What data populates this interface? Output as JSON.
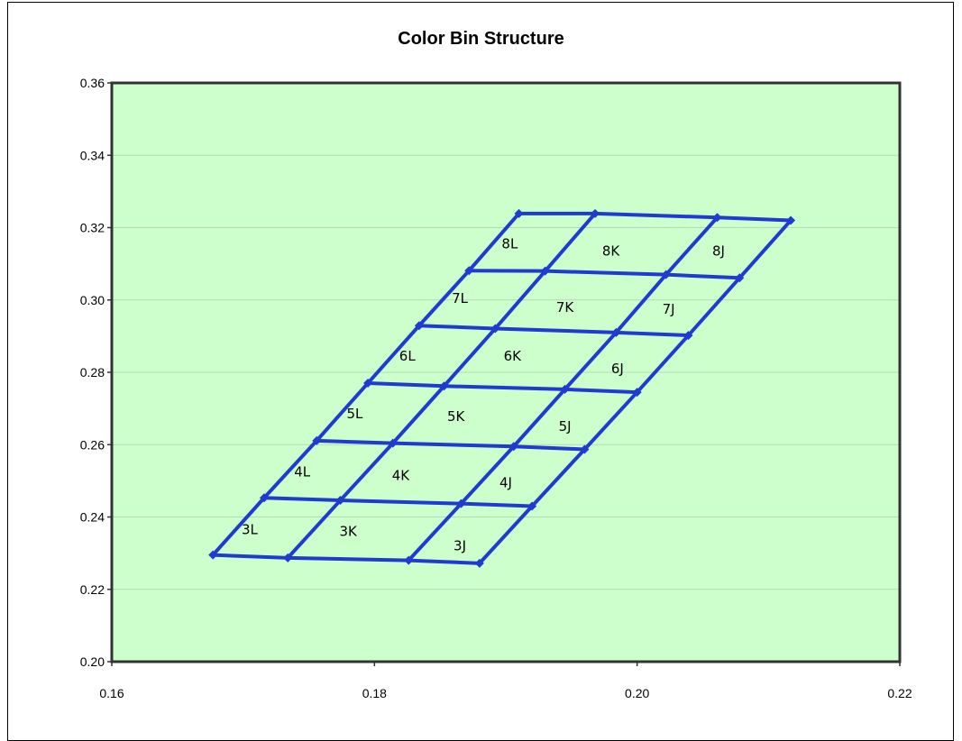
{
  "chart_data": {
    "type": "line",
    "title": "Color Bin Structure",
    "xlabel": "",
    "ylabel": "",
    "xlim": [
      0.16,
      0.22
    ],
    "ylim": [
      0.2,
      0.36
    ],
    "x_ticks": [
      "0.16",
      "0.18",
      "0.20",
      "0.22"
    ],
    "y_ticks": [
      "0.20",
      "0.22",
      "0.24",
      "0.26",
      "0.28",
      "0.30",
      "0.32",
      "0.34",
      "0.36"
    ],
    "grid": true,
    "legend": "none",
    "plot_background": "#ccffcc",
    "line_color": "#1f3ccf",
    "grid_nodes": [
      [
        [
          0.1677,
          0.2295
        ],
        [
          0.1734,
          0.2287
        ],
        [
          0.1826,
          0.228
        ],
        [
          0.188,
          0.2272
        ]
      ],
      [
        [
          0.1716,
          0.2453
        ],
        [
          0.1774,
          0.2446
        ],
        [
          0.1866,
          0.2437
        ],
        [
          0.192,
          0.243
        ]
      ],
      [
        [
          0.1756,
          0.2611
        ],
        [
          0.1814,
          0.2604
        ],
        [
          0.1906,
          0.2595
        ],
        [
          0.196,
          0.2587
        ]
      ],
      [
        [
          0.1795,
          0.277
        ],
        [
          0.1853,
          0.2762
        ],
        [
          0.1945,
          0.2753
        ],
        [
          0.2,
          0.2745
        ]
      ],
      [
        [
          0.1834,
          0.2929
        ],
        [
          0.1892,
          0.2921
        ],
        [
          0.1984,
          0.291
        ],
        [
          0.2039,
          0.2902
        ]
      ],
      [
        [
          0.1872,
          0.3081
        ],
        [
          0.193,
          0.308
        ],
        [
          0.2022,
          0.307
        ],
        [
          0.2078,
          0.3061
        ]
      ],
      [
        [
          0.191,
          0.3239
        ],
        [
          0.1968,
          0.3239
        ],
        [
          0.2061,
          0.3228
        ],
        [
          0.2117,
          0.322
        ]
      ]
    ],
    "bin_labels": [
      {
        "label": "3L",
        "x": 0.1705,
        "y": 0.2365
      },
      {
        "label": "3K",
        "x": 0.178,
        "y": 0.236
      },
      {
        "label": "3J",
        "x": 0.1865,
        "y": 0.232
      },
      {
        "label": "4L",
        "x": 0.1745,
        "y": 0.2525
      },
      {
        "label": "4K",
        "x": 0.182,
        "y": 0.2515
      },
      {
        "label": "4J",
        "x": 0.19,
        "y": 0.2495
      },
      {
        "label": "5L",
        "x": 0.1785,
        "y": 0.2685
      },
      {
        "label": "5K",
        "x": 0.1862,
        "y": 0.2678
      },
      {
        "label": "5J",
        "x": 0.1945,
        "y": 0.265
      },
      {
        "label": "6L",
        "x": 0.1825,
        "y": 0.2845
      },
      {
        "label": "6K",
        "x": 0.1905,
        "y": 0.2845
      },
      {
        "label": "6J",
        "x": 0.1985,
        "y": 0.281
      },
      {
        "label": "7L",
        "x": 0.1865,
        "y": 0.3004
      },
      {
        "label": "7K",
        "x": 0.1945,
        "y": 0.298
      },
      {
        "label": "7J",
        "x": 0.2024,
        "y": 0.2975
      },
      {
        "label": "8L",
        "x": 0.1903,
        "y": 0.3155
      },
      {
        "label": "8K",
        "x": 0.198,
        "y": 0.3135
      },
      {
        "label": "8J",
        "x": 0.2062,
        "y": 0.3135
      }
    ]
  }
}
